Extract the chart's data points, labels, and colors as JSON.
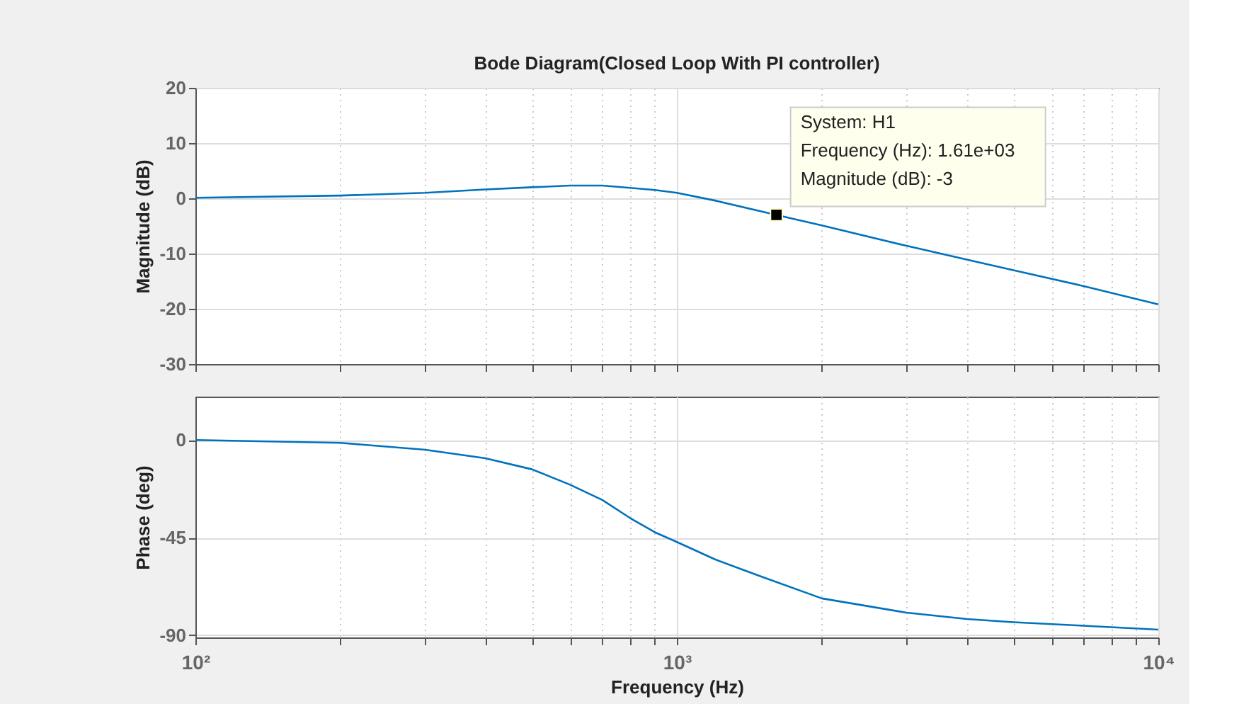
{
  "chart_data": [
    {
      "type": "line",
      "title": "Bode Diagram(Closed Loop With PI controller)",
      "ylabel": "Magnitude (dB)",
      "x": [
        100,
        200,
        300,
        400,
        500,
        600,
        700,
        800,
        900,
        1000,
        1200,
        1610,
        2000,
        3000,
        4000,
        5000,
        7000,
        10000
      ],
      "series": [
        {
          "color": "#0072bd",
          "values": [
            0.1,
            0.5,
            1.0,
            1.6,
            2.0,
            2.3,
            2.3,
            1.9,
            1.5,
            1.0,
            -0.4,
            -3,
            -4.9,
            -8.6,
            -11.1,
            -13.0,
            -15.9,
            -19.2
          ]
        }
      ],
      "log": "x",
      "xlim": [
        100,
        10000
      ],
      "xticks": [
        {
          "value": 100,
          "label": null
        },
        {
          "value": 200,
          "label": null
        },
        {
          "value": 300,
          "label": null
        },
        {
          "value": 400,
          "label": null
        },
        {
          "value": 500,
          "label": null
        },
        {
          "value": 600,
          "label": null
        },
        {
          "value": 700,
          "label": null
        },
        {
          "value": 800,
          "label": null
        },
        {
          "value": 900,
          "label": null
        },
        {
          "value": 1000,
          "label": null
        },
        {
          "value": 2000,
          "label": null
        },
        {
          "value": 3000,
          "label": null
        },
        {
          "value": 4000,
          "label": null
        },
        {
          "value": 5000,
          "label": null
        },
        {
          "value": 6000,
          "label": null
        },
        {
          "value": 7000,
          "label": null
        },
        {
          "value": 8000,
          "label": null
        },
        {
          "value": 9000,
          "label": null
        },
        {
          "value": 10000,
          "label": null
        }
      ],
      "ylim": [
        -30,
        20
      ],
      "yticks": [
        -30,
        -20,
        -10,
        0,
        10,
        20
      ],
      "grid": true,
      "tick_labels": "y",
      "annotations": [
        {
          "text": "System: H1\nFrequency (Hz): 1.61e+03\nMagnitude (dB): -3",
          "x": 1610,
          "y": -3
        }
      ]
    },
    {
      "type": "line",
      "xlabel": "Frequency  (Hz)",
      "ylabel": "Phase (deg)",
      "x": [
        100,
        200,
        300,
        400,
        500,
        600,
        700,
        800,
        900,
        1000,
        1200,
        1500,
        2000,
        3000,
        4000,
        5000,
        7000,
        10000
      ],
      "series": [
        {
          "color": "#0072bd",
          "values": [
            0,
            -1.3,
            -4.5,
            -8.4,
            -13.5,
            -20.6,
            -27.6,
            -36,
            -42.5,
            -47,
            -55,
            -63,
            -73,
            -79.6,
            -82.5,
            -84,
            -85.6,
            -87.4
          ]
        }
      ],
      "log": "x",
      "xlim": [
        100,
        10000
      ],
      "xticks": [
        {
          "value": 100,
          "label": "10²"
        },
        {
          "value": 200,
          "label": null
        },
        {
          "value": 300,
          "label": null
        },
        {
          "value": 400,
          "label": null
        },
        {
          "value": 500,
          "label": null
        },
        {
          "value": 600,
          "label": null
        },
        {
          "value": 700,
          "label": null
        },
        {
          "value": 800,
          "label": null
        },
        {
          "value": 900,
          "label": null
        },
        {
          "value": 1000,
          "label": "10³"
        },
        {
          "value": 2000,
          "label": null
        },
        {
          "value": 3000,
          "label": null
        },
        {
          "value": 4000,
          "label": null
        },
        {
          "value": 5000,
          "label": null
        },
        {
          "value": 6000,
          "label": null
        },
        {
          "value": 7000,
          "label": null
        },
        {
          "value": 8000,
          "label": null
        },
        {
          "value": 9000,
          "label": null
        },
        {
          "value": 10000,
          "label": "10⁴"
        }
      ],
      "ylim": [
        -91,
        20
      ],
      "yticks": [
        -90,
        -45,
        0
      ],
      "grid": true
    }
  ]
}
